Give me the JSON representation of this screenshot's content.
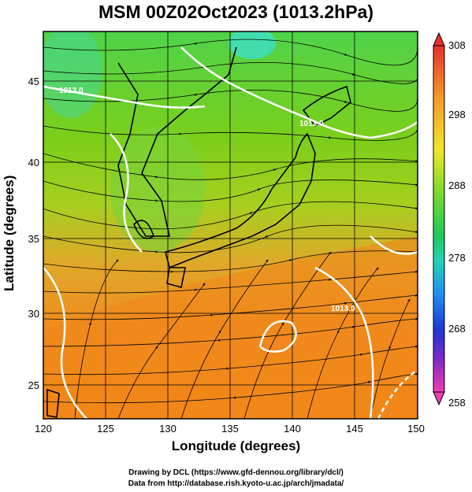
{
  "title": "MSM 00Z02Oct2023 (1013.2hPa)",
  "x_axis": {
    "label": "Longitude (degrees)",
    "ticks": [
      "120",
      "125",
      "130",
      "135",
      "140",
      "145",
      "150"
    ]
  },
  "y_axis": {
    "label": "Latitude  (degrees)",
    "ticks": [
      "45",
      "40",
      "35",
      "30",
      "25"
    ]
  },
  "colorbar": {
    "ticks": [
      "308",
      "298",
      "288",
      "278",
      "268",
      "258"
    ]
  },
  "contour_labels": [
    "1013.0",
    "1012.0",
    "1013.0"
  ],
  "credits": [
    "Drawing by DCL (https://www.gfd-dennou.org/library/dcl/)",
    "Data from http://database.rish.kyoto-u.ac.jp/arch/jmadata/"
  ]
}
